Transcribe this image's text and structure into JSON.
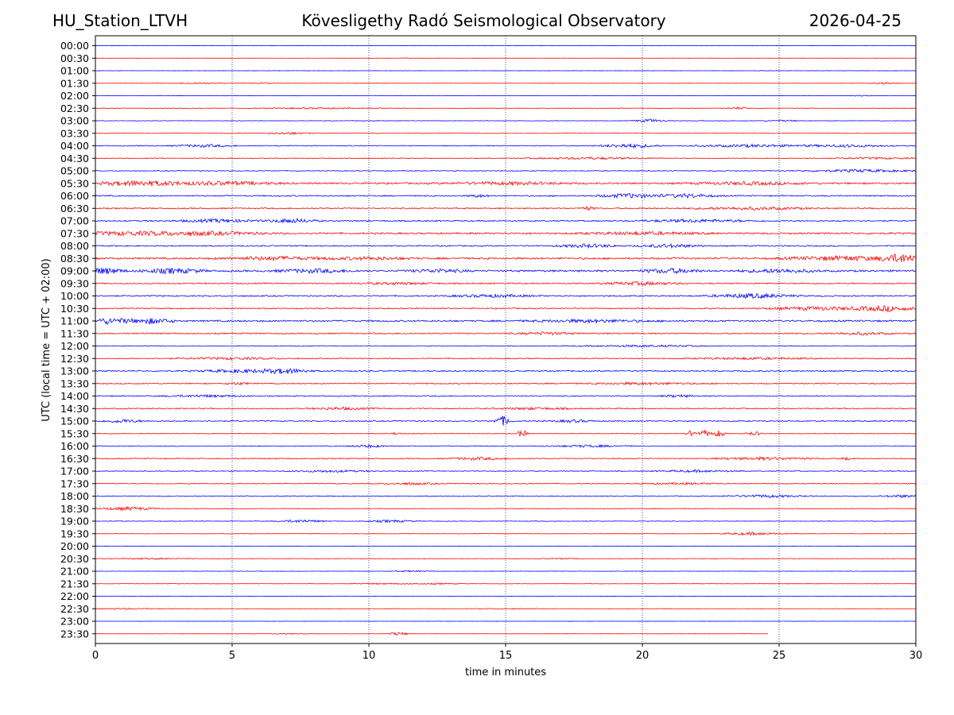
{
  "header": {
    "station": "HU_Station_LTVH",
    "observatory": "Kövesligethy Radó Seismological Observatory",
    "date": "2026-04-25"
  },
  "chart_data": {
    "type": "line",
    "title": "Kövesligethy Radó Seismological Observatory",
    "xlabel": "time in minutes",
    "ylabel": "UTC (local time = UTC + 02:00)",
    "xlim": [
      0,
      30
    ],
    "x_ticks": [
      0,
      5,
      10,
      15,
      20,
      25,
      30
    ],
    "x_tick_labels": [
      "0",
      "5",
      "10",
      "15",
      "20",
      "25",
      "30"
    ],
    "grid": "vertical dotted at 5-minute ticks",
    "colors": {
      "even_rows": "#0000ff",
      "odd_rows": "#ff0000",
      "grid": "#000080"
    },
    "rows": [
      {
        "label": "00:00",
        "noise": 0.1,
        "events": []
      },
      {
        "label": "00:30",
        "noise": 0.12,
        "events": [
          {
            "t": 11.5,
            "a": 0.5,
            "w": 0.4
          }
        ]
      },
      {
        "label": "01:00",
        "noise": 0.12,
        "events": [
          {
            "t": 24.4,
            "a": 0.6,
            "w": 0.3
          }
        ]
      },
      {
        "label": "01:30",
        "noise": 0.25,
        "events": [
          {
            "t": 3.8,
            "a": 0.9,
            "w": 1.2
          },
          {
            "t": 6.2,
            "a": 0.8,
            "w": 1.0
          },
          {
            "t": 28.8,
            "a": 1.4,
            "w": 0.6
          }
        ]
      },
      {
        "label": "02:00",
        "noise": 0.18,
        "events": [
          {
            "t": 28.0,
            "a": 0.7,
            "w": 0.4
          }
        ]
      },
      {
        "label": "02:30",
        "noise": 0.3,
        "events": [
          {
            "t": 8.0,
            "a": 0.8,
            "w": 3.0
          },
          {
            "t": 23.5,
            "a": 1.5,
            "w": 0.6
          }
        ]
      },
      {
        "label": "03:00",
        "noise": 0.35,
        "events": [
          {
            "t": 20.3,
            "a": 2.0,
            "w": 0.8
          },
          {
            "t": 25.2,
            "a": 0.8,
            "w": 1.0
          }
        ]
      },
      {
        "label": "03:30",
        "noise": 0.35,
        "events": [
          {
            "t": 7.0,
            "a": 1.4,
            "w": 1.2
          }
        ]
      },
      {
        "label": "04:00",
        "noise": 0.65,
        "events": [
          {
            "t": 4.0,
            "a": 1.5,
            "w": 1.5
          },
          {
            "t": 19.5,
            "a": 2.5,
            "w": 1.4
          },
          {
            "t": 24.0,
            "a": 1.5,
            "w": 3.0
          },
          {
            "t": 27.5,
            "a": 1.5,
            "w": 2.0
          }
        ]
      },
      {
        "label": "04:30",
        "noise": 0.55,
        "events": [
          {
            "t": 18.0,
            "a": 1.2,
            "w": 3.0
          },
          {
            "t": 28.5,
            "a": 1.0,
            "w": 2.0
          }
        ]
      },
      {
        "label": "05:00",
        "noise": 0.6,
        "events": [
          {
            "t": 28.0,
            "a": 1.5,
            "w": 3.0
          }
        ]
      },
      {
        "label": "05:30",
        "noise": 1.2,
        "events": [
          {
            "t": 1.5,
            "a": 2.8,
            "w": 2.0
          },
          {
            "t": 4.5,
            "a": 2.0,
            "w": 3.0
          },
          {
            "t": 15.0,
            "a": 1.5,
            "w": 3.0
          },
          {
            "t": 24.0,
            "a": 1.5,
            "w": 3.0
          }
        ]
      },
      {
        "label": "06:00",
        "noise": 0.9,
        "events": [
          {
            "t": 14.0,
            "a": 1.5,
            "w": 0.5
          },
          {
            "t": 19.5,
            "a": 2.5,
            "w": 1.5
          },
          {
            "t": 21.6,
            "a": 2.2,
            "w": 1.5
          }
        ]
      },
      {
        "label": "06:30",
        "noise": 0.9,
        "events": [
          {
            "t": 18.0,
            "a": 2.0,
            "w": 0.4
          },
          {
            "t": 24.0,
            "a": 1.5,
            "w": 3.0
          }
        ]
      },
      {
        "label": "07:00",
        "noise": 0.9,
        "events": [
          {
            "t": 4.5,
            "a": 1.8,
            "w": 2.0
          },
          {
            "t": 7.2,
            "a": 2.5,
            "w": 1.2
          },
          {
            "t": 22.0,
            "a": 1.5,
            "w": 3.0
          }
        ]
      },
      {
        "label": "07:30",
        "noise": 1.2,
        "events": [
          {
            "t": 1.0,
            "a": 2.0,
            "w": 3.0
          },
          {
            "t": 4.0,
            "a": 2.0,
            "w": 3.0
          },
          {
            "t": 20.0,
            "a": 1.5,
            "w": 3.0
          }
        ]
      },
      {
        "label": "08:00",
        "noise": 0.9,
        "events": [
          {
            "t": 18.0,
            "a": 2.0,
            "w": 1.5
          },
          {
            "t": 21.0,
            "a": 2.0,
            "w": 1.5
          }
        ]
      },
      {
        "label": "08:30",
        "noise": 1.3,
        "events": [
          {
            "t": 6.5,
            "a": 2.0,
            "w": 2.5
          },
          {
            "t": 10.0,
            "a": 1.5,
            "w": 2.0
          },
          {
            "t": 27.5,
            "a": 2.5,
            "w": 3.0
          },
          {
            "t": 29.5,
            "a": 4.5,
            "w": 1.0
          }
        ]
      },
      {
        "label": "09:00",
        "noise": 1.3,
        "events": [
          {
            "t": 0.3,
            "a": 3.5,
            "w": 1.0
          },
          {
            "t": 2.8,
            "a": 3.0,
            "w": 1.5
          },
          {
            "t": 8.0,
            "a": 2.0,
            "w": 2.0
          },
          {
            "t": 12.5,
            "a": 1.8,
            "w": 1.5
          },
          {
            "t": 21.0,
            "a": 2.5,
            "w": 1.5
          },
          {
            "t": 25.0,
            "a": 2.0,
            "w": 2.0
          }
        ]
      },
      {
        "label": "09:30",
        "noise": 0.9,
        "events": [
          {
            "t": 20.0,
            "a": 1.8,
            "w": 2.0
          },
          {
            "t": 11.0,
            "a": 1.2,
            "w": 2.0
          }
        ]
      },
      {
        "label": "10:00",
        "noise": 1.0,
        "events": [
          {
            "t": 24.0,
            "a": 2.5,
            "w": 2.0
          },
          {
            "t": 14.5,
            "a": 1.5,
            "w": 2.0
          }
        ]
      },
      {
        "label": "10:30",
        "noise": 0.8,
        "events": [
          {
            "t": 26.5,
            "a": 2.0,
            "w": 3.0
          },
          {
            "t": 29.0,
            "a": 3.0,
            "w": 1.5
          }
        ]
      },
      {
        "label": "11:00",
        "noise": 1.2,
        "events": [
          {
            "t": 0.5,
            "a": 3.5,
            "w": 1.0
          },
          {
            "t": 2.0,
            "a": 3.0,
            "w": 1.2
          },
          {
            "t": 18.0,
            "a": 1.5,
            "w": 3.0
          }
        ]
      },
      {
        "label": "11:30",
        "noise": 0.9,
        "events": [
          {
            "t": 16.5,
            "a": 1.5,
            "w": 1.5
          },
          {
            "t": 28.0,
            "a": 1.5,
            "w": 1.5
          }
        ]
      },
      {
        "label": "12:00",
        "noise": 0.6,
        "events": [
          {
            "t": 20.0,
            "a": 1.0,
            "w": 3.0
          }
        ]
      },
      {
        "label": "12:30",
        "noise": 0.7,
        "events": [
          {
            "t": 5.0,
            "a": 1.2,
            "w": 3.0
          },
          {
            "t": 24.0,
            "a": 1.2,
            "w": 3.0
          }
        ]
      },
      {
        "label": "13:00",
        "noise": 0.9,
        "events": [
          {
            "t": 5.5,
            "a": 1.8,
            "w": 2.5
          },
          {
            "t": 7.0,
            "a": 2.2,
            "w": 1.2
          }
        ]
      },
      {
        "label": "13:30",
        "noise": 0.8,
        "events": [
          {
            "t": 5.2,
            "a": 1.5,
            "w": 0.6
          },
          {
            "t": 20.0,
            "a": 1.2,
            "w": 3.0
          }
        ]
      },
      {
        "label": "14:00",
        "noise": 0.8,
        "events": [
          {
            "t": 21.3,
            "a": 1.5,
            "w": 0.8
          },
          {
            "t": 4.0,
            "a": 1.2,
            "w": 2.0
          }
        ]
      },
      {
        "label": "14:30",
        "noise": 0.8,
        "events": [
          {
            "t": 9.0,
            "a": 1.5,
            "w": 1.5
          },
          {
            "t": 16.0,
            "a": 1.2,
            "w": 2.0
          }
        ]
      },
      {
        "label": "15:00",
        "noise": 0.8,
        "events": [
          {
            "t": 1.0,
            "a": 2.0,
            "w": 1.0
          },
          {
            "t": 14.9,
            "a": 6.0,
            "w": 0.4
          },
          {
            "t": 17.5,
            "a": 1.5,
            "w": 1.0
          }
        ]
      },
      {
        "label": "15:30",
        "noise": 0.45,
        "events": [
          {
            "t": 11.0,
            "a": 1.5,
            "w": 0.3
          },
          {
            "t": 15.6,
            "a": 4.5,
            "w": 0.3
          },
          {
            "t": 21.8,
            "a": 4.0,
            "w": 0.3
          },
          {
            "t": 22.3,
            "a": 4.5,
            "w": 0.3
          },
          {
            "t": 22.8,
            "a": 4.5,
            "w": 0.3
          },
          {
            "t": 24.1,
            "a": 2.5,
            "w": 0.4
          }
        ]
      },
      {
        "label": "16:00",
        "noise": 0.6,
        "events": [
          {
            "t": 10.0,
            "a": 1.5,
            "w": 1.0
          },
          {
            "t": 18.0,
            "a": 1.2,
            "w": 2.0
          }
        ]
      },
      {
        "label": "16:30",
        "noise": 0.75,
        "events": [
          {
            "t": 14.0,
            "a": 1.5,
            "w": 1.5
          },
          {
            "t": 24.5,
            "a": 1.5,
            "w": 2.5
          },
          {
            "t": 27.5,
            "a": 2.0,
            "w": 0.3
          }
        ]
      },
      {
        "label": "17:00",
        "noise": 0.6,
        "events": [
          {
            "t": 8.5,
            "a": 1.2,
            "w": 2.0
          },
          {
            "t": 22.0,
            "a": 1.2,
            "w": 2.0
          }
        ]
      },
      {
        "label": "17:30",
        "noise": 0.6,
        "events": [
          {
            "t": 11.5,
            "a": 1.2,
            "w": 1.5
          },
          {
            "t": 21.5,
            "a": 1.0,
            "w": 2.0
          }
        ]
      },
      {
        "label": "18:00",
        "noise": 0.6,
        "events": [
          {
            "t": 24.5,
            "a": 1.5,
            "w": 2.0
          },
          {
            "t": 29.5,
            "a": 1.5,
            "w": 1.0
          }
        ]
      },
      {
        "label": "18:30",
        "noise": 0.5,
        "events": [
          {
            "t": 1.2,
            "a": 2.0,
            "w": 1.5
          }
        ]
      },
      {
        "label": "19:00",
        "noise": 0.4,
        "events": [
          {
            "t": 7.5,
            "a": 1.8,
            "w": 1.2
          },
          {
            "t": 10.8,
            "a": 1.5,
            "w": 1.2
          }
        ]
      },
      {
        "label": "19:30",
        "noise": 0.35,
        "events": [
          {
            "t": 24.0,
            "a": 1.8,
            "w": 1.5
          }
        ]
      },
      {
        "label": "20:00",
        "noise": 0.12,
        "events": []
      },
      {
        "label": "20:30",
        "noise": 0.3,
        "events": [
          {
            "t": 2.0,
            "a": 0.8,
            "w": 2.0
          },
          {
            "t": 17.0,
            "a": 0.6,
            "w": 1.0
          }
        ]
      },
      {
        "label": "21:00",
        "noise": 0.25,
        "events": [
          {
            "t": 11.5,
            "a": 0.8,
            "w": 1.0
          }
        ]
      },
      {
        "label": "21:30",
        "noise": 0.25,
        "events": [
          {
            "t": 10.5,
            "a": 0.8,
            "w": 1.5
          },
          {
            "t": 12.5,
            "a": 0.8,
            "w": 1.5
          }
        ]
      },
      {
        "label": "22:00",
        "noise": 0.12,
        "events": []
      },
      {
        "label": "22:30",
        "noise": 0.2,
        "events": [
          {
            "t": 1.0,
            "a": 0.8,
            "w": 2.0
          },
          {
            "t": 15.0,
            "a": 0.6,
            "w": 1.5
          }
        ]
      },
      {
        "label": "23:00",
        "noise": 0.12,
        "events": []
      },
      {
        "label": "23:30",
        "noise": 0.2,
        "end_minute": 24.6,
        "events": [
          {
            "t": 11.1,
            "a": 2.2,
            "w": 0.5
          },
          {
            "t": 7.0,
            "a": 0.5,
            "w": 1.0
          }
        ]
      }
    ]
  }
}
